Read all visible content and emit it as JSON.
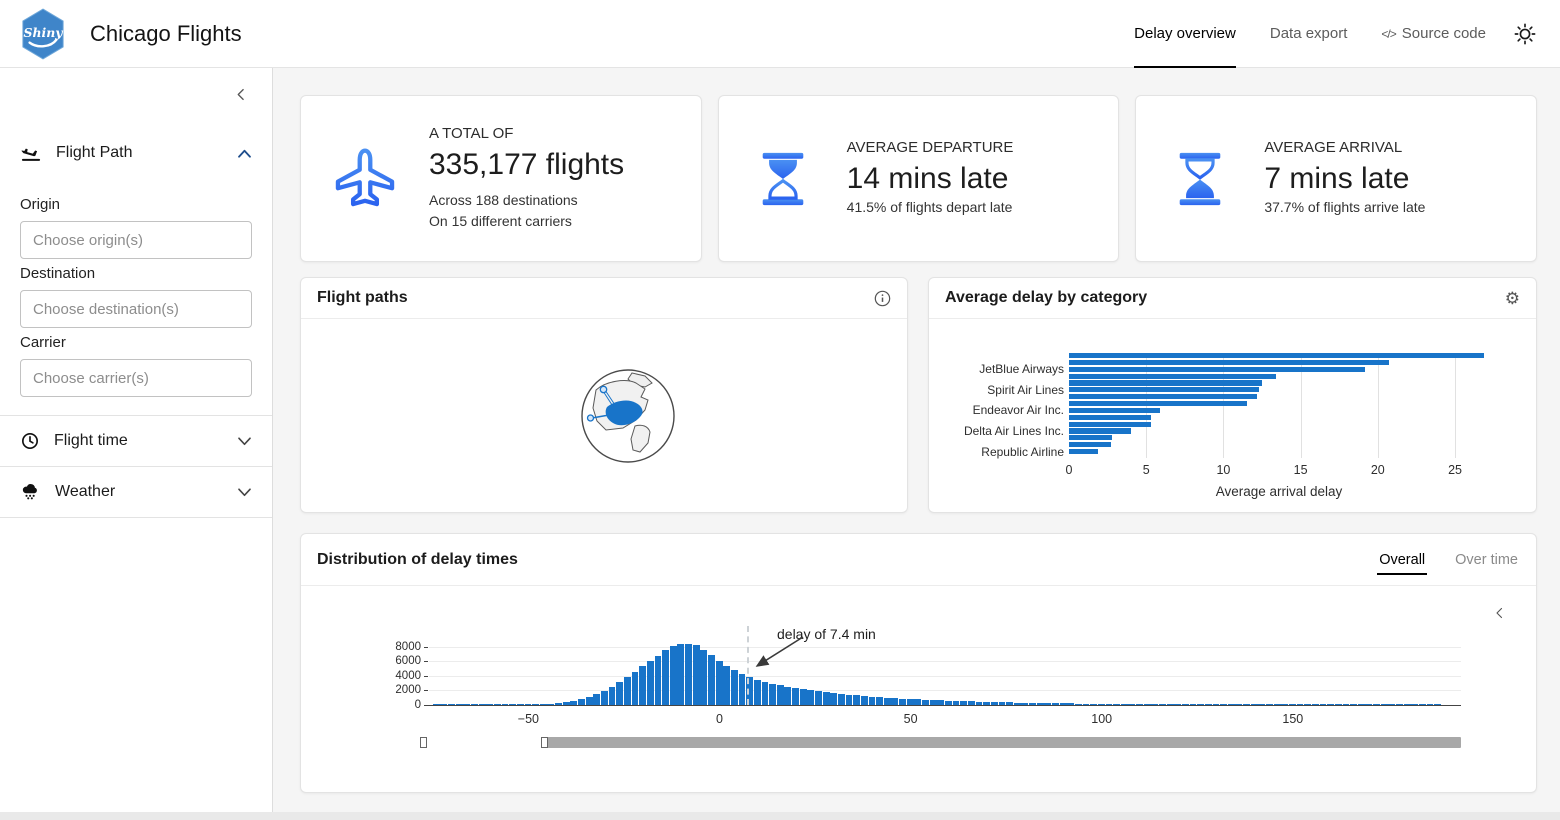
{
  "header": {
    "logo_text": "Shiny",
    "title": "Chicago Flights",
    "nav": [
      {
        "label": "Delay overview",
        "active": true
      },
      {
        "label": "Data export",
        "active": false
      },
      {
        "label": "Source code",
        "active": false,
        "icon": "code-icon",
        "icon_glyph": "</>"
      }
    ]
  },
  "sidebar": {
    "sections": [
      {
        "label": "Flight Path",
        "icon": "plane-arrival-icon",
        "expanded": true,
        "fields": [
          {
            "label": "Origin",
            "placeholder": "Choose origin(s)"
          },
          {
            "label": "Destination",
            "placeholder": "Choose destination(s)"
          },
          {
            "label": "Carrier",
            "placeholder": "Choose carrier(s)"
          }
        ]
      },
      {
        "label": "Flight time",
        "icon": "clock-icon",
        "expanded": false
      },
      {
        "label": "Weather",
        "icon": "cloud-rain-icon",
        "expanded": false
      }
    ]
  },
  "value_boxes": [
    {
      "icon": "plane-icon",
      "title": "A TOTAL OF",
      "value": "335,177 flights",
      "subtitle1": "Across 188 destinations",
      "subtitle2": "On 15 different carriers"
    },
    {
      "icon": "hourglass-start-icon",
      "title": "AVERAGE DEPARTURE",
      "value": "14 mins late",
      "subtitle1": "41.5% of flights depart late",
      "subtitle2": ""
    },
    {
      "icon": "hourglass-end-icon",
      "title": "AVERAGE ARRIVAL",
      "value": "7 mins late",
      "subtitle1": "37.7% of flights arrive late",
      "subtitle2": ""
    }
  ],
  "flight_paths_card": {
    "title": "Flight paths",
    "header_icon": "info-icon"
  },
  "delay_card": {
    "title": "Average delay by category",
    "header_icon": "gear-icon",
    "gear_glyph": "⚙"
  },
  "distribution_card": {
    "title": "Distribution of delay times",
    "tabs": [
      {
        "label": "Overall",
        "active": true
      },
      {
        "label": "Over time",
        "active": false
      }
    ]
  },
  "chart_data": [
    {
      "id": "average-delay-by-carrier",
      "type": "bar",
      "orientation": "horizontal",
      "title": "Average delay by category",
      "xlabel": "Average arrival delay",
      "ylabel": "",
      "xticks": [
        0,
        5,
        10,
        15,
        20,
        25
      ],
      "xlim": [
        0,
        27.2
      ],
      "categories": [
        "",
        "",
        "JetBlue Airways",
        "",
        "",
        "Spirit Air Lines",
        "",
        "",
        "Endeavor Air Inc.",
        "",
        "",
        "Delta Air Lines Inc.",
        "",
        "",
        "Republic Airline"
      ],
      "values": [
        26.9,
        20.7,
        19.2,
        13.4,
        12.5,
        12.3,
        12.2,
        11.5,
        5.9,
        5.3,
        5.3,
        4.0,
        2.8,
        2.7,
        1.9
      ],
      "bar_color": "#1874c9",
      "grid": true
    },
    {
      "id": "delay-distribution-histogram",
      "type": "histogram",
      "title": "Distribution of delay times",
      "xlabel": "",
      "ylabel": "",
      "bin_start": -75,
      "bin_width": 2,
      "heights": [
        40,
        34,
        44,
        38,
        50,
        42,
        55,
        48,
        60,
        52,
        64,
        70,
        80,
        95,
        140,
        200,
        300,
        430,
        600,
        830,
        1120,
        1500,
        1950,
        2500,
        3100,
        3800,
        4500,
        5300,
        6100,
        6800,
        7500,
        8100,
        8400,
        8450,
        8200,
        7600,
        6900,
        6100,
        5400,
        4800,
        4300,
        3900,
        3500,
        3200,
        2950,
        2700,
        2500,
        2300,
        2150,
        2000,
        1870,
        1750,
        1630,
        1520,
        1420,
        1330,
        1240,
        1160,
        1090,
        1020,
        950,
        890,
        830,
        780,
        730,
        680,
        640,
        600,
        560,
        520,
        490,
        460,
        430,
        400,
        380,
        350,
        330,
        310,
        290,
        270,
        250,
        240,
        220,
        210,
        195,
        185,
        170,
        160,
        150,
        145,
        135,
        130,
        120,
        115,
        110,
        100,
        95,
        90,
        85,
        80,
        75,
        70,
        68,
        64,
        60,
        57,
        54,
        50,
        48,
        45,
        43,
        40,
        38,
        36,
        34,
        32,
        30,
        28,
        27,
        25,
        24,
        22,
        21,
        20,
        19,
        18,
        17,
        16,
        15,
        14,
        13,
        12
      ],
      "xticks": [
        -50,
        0,
        50,
        100,
        150
      ],
      "yticks": [
        0,
        2000,
        4000,
        6000,
        8000
      ],
      "xlim": [
        -76,
        194
      ],
      "ylim": [
        0,
        8800
      ],
      "vline_x": 7.4,
      "annotation": "delay of 7.4 min",
      "bar_color": "#1874c9",
      "grid": true
    }
  ],
  "colors": {
    "accent_blue": "#1874c9",
    "icon_gradient_start": "#4a90f2",
    "icon_gradient_end": "#2b63ef",
    "active_tab_underline": "#000000"
  }
}
